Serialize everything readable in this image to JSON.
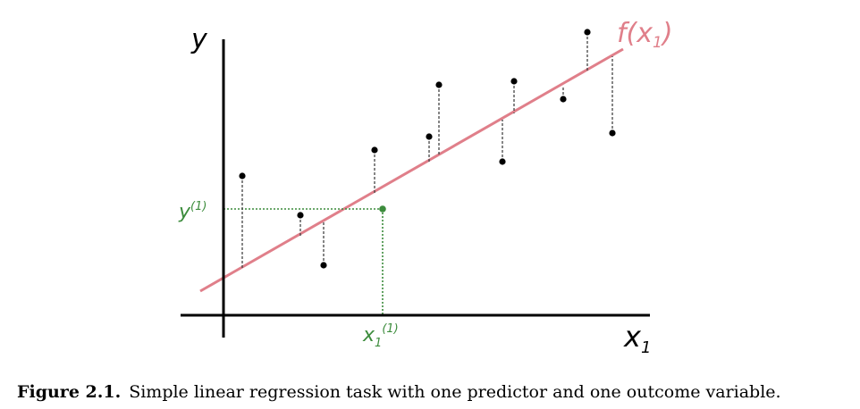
{
  "diagram": {
    "y_axis_label": "y",
    "x_axis_label": "x",
    "x_axis_label_sub": "1",
    "regression_label_prefix": "f(x",
    "regression_label_sub": "1",
    "regression_label_suffix": ")",
    "highlight_y_label": "y",
    "highlight_y_sup": "(1)",
    "highlight_x_label": "x",
    "highlight_x_sub": "1",
    "highlight_x_sup": "(1)",
    "colors": {
      "regression_line": "#e07f8a",
      "highlight": "#3c8c3c",
      "axis": "#000000",
      "residual": "#444444",
      "point": "#000000"
    }
  },
  "caption": {
    "label": "Figure 2.1.",
    "text": "Simple linear regression task with one predictor and one outcome variable."
  }
}
